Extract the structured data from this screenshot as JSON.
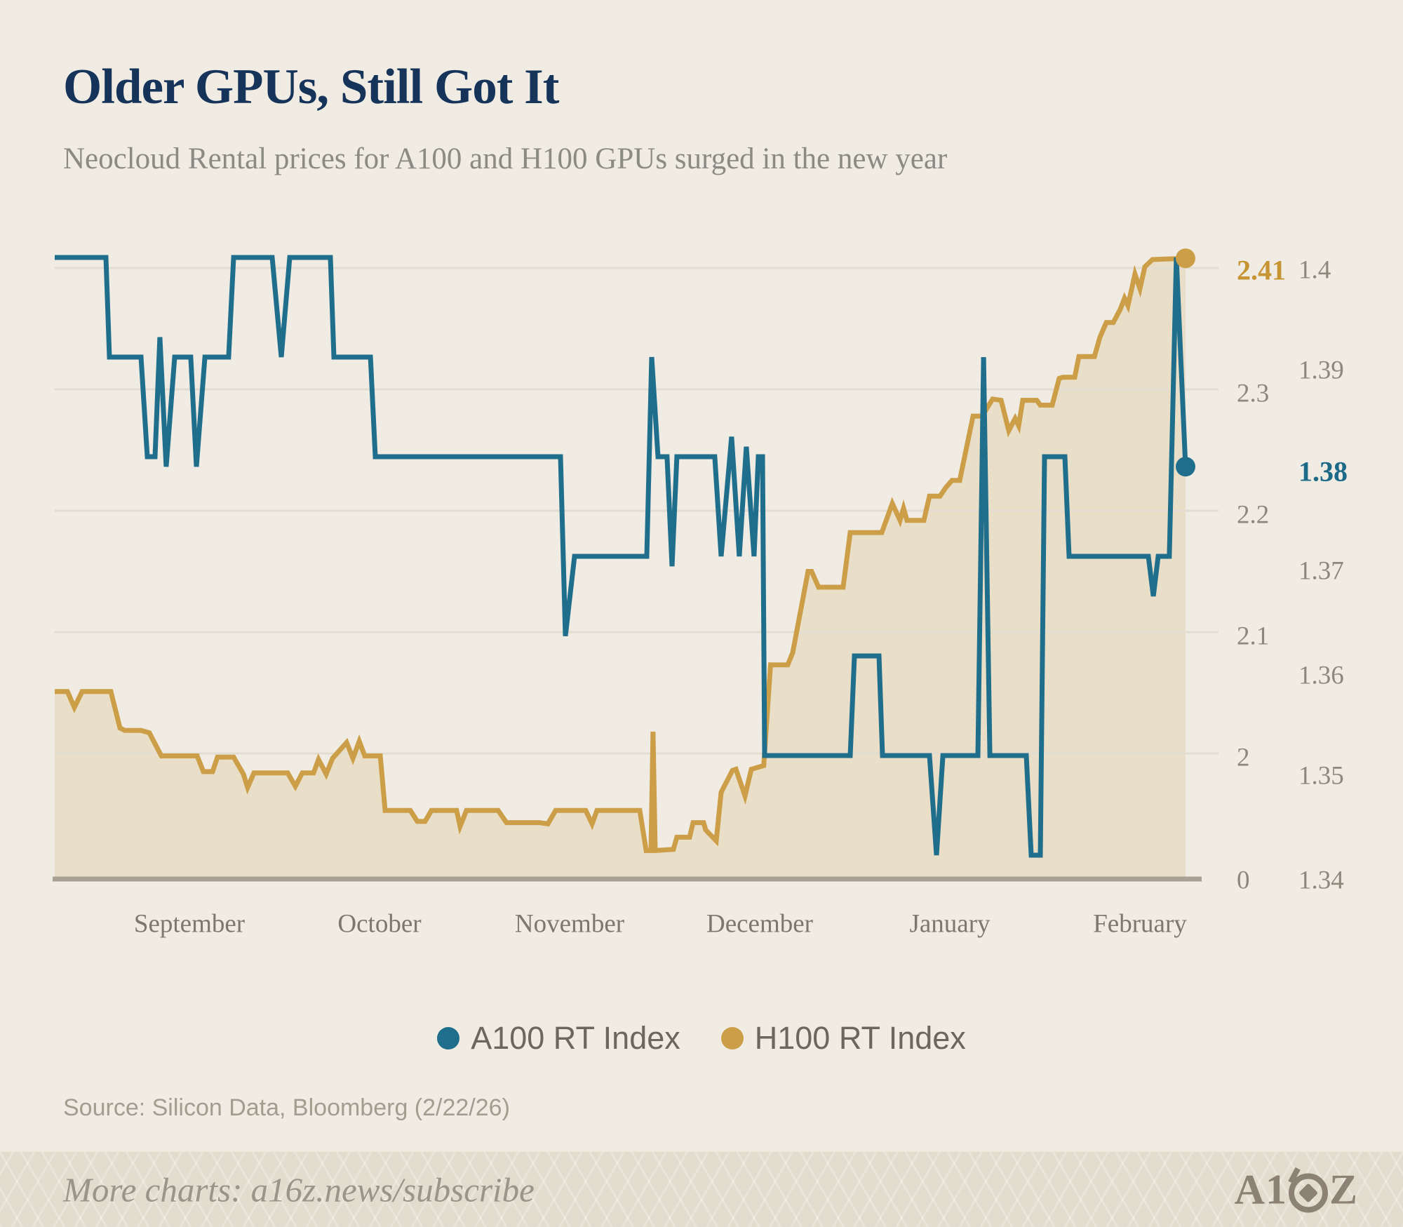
{
  "title": "Older GPUs, Still Got It",
  "subtitle": "Neocloud Rental prices for A100 and H100 GPUs surged in the new year",
  "source": "Source: Silicon Data, Bloomberg (2/22/26)",
  "footer": {
    "more_charts": "More charts: a16z.news/subscribe",
    "logo_left": "A1",
    "logo_right": "Z"
  },
  "colors": {
    "background": "#F0EBE3",
    "teal": "#1F6E8C",
    "gold": "#CC9E48",
    "gold_fill": "rgba(204,158,72,0.17)",
    "gridline": "#E2DCD1",
    "axis": "#A8A093",
    "title_navy": "#16345A",
    "end_label_gold": "#C79433",
    "end_label_teal": "#1D6A88"
  },
  "legend": {
    "items": [
      {
        "label": "A100 RT Index",
        "color": "#1F6E8C"
      },
      {
        "label": "H100 RT Index",
        "color": "#CC9E48"
      }
    ]
  },
  "axes": {
    "months": [
      "September",
      "October",
      "November",
      "December",
      "January",
      "February"
    ],
    "h100_ticks": [
      "2.41",
      "2.3",
      "2.2",
      "2.1",
      "2",
      "0"
    ],
    "a100_ticks": [
      "1.4",
      "1.39",
      "1.38",
      "1.37",
      "1.36",
      "1.35",
      "1.34"
    ]
  },
  "chart_data": {
    "type": "line",
    "title": "Older GPUs, Still Got It",
    "subtitle": "Neocloud Rental prices for A100 and H100 GPUs surged in the new year",
    "x_note": "x = fraction of time window late Aug through Feb 22; month labels September-February",
    "categories_months": [
      "September",
      "October",
      "November",
      "December",
      "January",
      "February"
    ],
    "legend_position": "bottom-center",
    "grid": "horizontal",
    "h100_axis": {
      "side": "right",
      "ticks": [
        2.41,
        2.3,
        2.2,
        2.1,
        2,
        0
      ],
      "gridlines": [
        2.4,
        2.3,
        2.2,
        2.1,
        2.0
      ]
    },
    "a100_axis": {
      "side": "right",
      "ticks": [
        1.4,
        1.39,
        1.38,
        1.37,
        1.36,
        1.35,
        1.34
      ]
    },
    "series": [
      {
        "name": "A100 RT Index",
        "axis": "a100",
        "color": "#1F6E8C",
        "end_value": 1.38,
        "end_dot": true,
        "area_fill": false,
        "points": [
          [
            0.0,
            1.4
          ],
          [
            0.0453,
            1.4
          ],
          [
            0.0484,
            1.39
          ],
          [
            0.0763,
            1.39
          ],
          [
            0.0819,
            1.38
          ],
          [
            0.0887,
            1.38
          ],
          [
            0.093,
            1.392
          ],
          [
            0.0986,
            1.379
          ],
          [
            0.1061,
            1.39
          ],
          [
            0.1203,
            1.39
          ],
          [
            0.1253,
            1.379
          ],
          [
            0.1328,
            1.39
          ],
          [
            0.1538,
            1.39
          ],
          [
            0.1582,
            1.4
          ],
          [
            0.1923,
            1.4
          ],
          [
            0.2004,
            1.39
          ],
          [
            0.2078,
            1.4
          ],
          [
            0.2438,
            1.4
          ],
          [
            0.2469,
            1.39
          ],
          [
            0.2792,
            1.39
          ],
          [
            0.2835,
            1.38
          ],
          [
            0.4473,
            1.38
          ],
          [
            0.4516,
            1.362
          ],
          [
            0.4597,
            1.37
          ],
          [
            0.5236,
            1.37
          ],
          [
            0.5279,
            1.39
          ],
          [
            0.5335,
            1.38
          ],
          [
            0.5415,
            1.38
          ],
          [
            0.5459,
            1.369
          ],
          [
            0.5502,
            1.38
          ],
          [
            0.5837,
            1.38
          ],
          [
            0.5893,
            1.37
          ],
          [
            0.5986,
            1.382
          ],
          [
            0.6054,
            1.37
          ],
          [
            0.6116,
            1.381
          ],
          [
            0.6184,
            1.37
          ],
          [
            0.6222,
            1.38
          ],
          [
            0.6259,
            1.38
          ],
          [
            0.6278,
            1.35
          ],
          [
            0.7035,
            1.35
          ],
          [
            0.7072,
            1.36
          ],
          [
            0.7289,
            1.36
          ],
          [
            0.732,
            1.35
          ],
          [
            0.7736,
            1.35
          ],
          [
            0.7798,
            1.34
          ],
          [
            0.7854,
            1.35
          ],
          [
            0.8164,
            1.35
          ],
          [
            0.8214,
            1.39
          ],
          [
            0.827,
            1.35
          ],
          [
            0.8592,
            1.35
          ],
          [
            0.8635,
            1.34
          ],
          [
            0.8716,
            1.34
          ],
          [
            0.8753,
            1.38
          ],
          [
            0.8933,
            1.38
          ],
          [
            0.897,
            1.37
          ],
          [
            0.9671,
            1.37
          ],
          [
            0.9715,
            1.366
          ],
          [
            0.9758,
            1.37
          ],
          [
            0.9857,
            1.37
          ],
          [
            0.9919,
            1.4
          ],
          [
            1.0,
            1.379
          ]
        ]
      },
      {
        "name": "H100 RT Index",
        "axis": "h100",
        "color": "#CC9E48",
        "end_value": 2.41,
        "end_dot": true,
        "area_fill": true,
        "points": [
          [
            0.0,
            2.051
          ],
          [
            0.0112,
            2.051
          ],
          [
            0.0174,
            2.038
          ],
          [
            0.0242,
            2.051
          ],
          [
            0.0496,
            2.051
          ],
          [
            0.0577,
            2.021
          ],
          [
            0.062,
            2.019
          ],
          [
            0.0763,
            2.019
          ],
          [
            0.0837,
            2.017
          ],
          [
            0.0943,
            1.998
          ],
          [
            0.1259,
            1.998
          ],
          [
            0.1315,
            1.985
          ],
          [
            0.1396,
            1.985
          ],
          [
            0.1439,
            1.997
          ],
          [
            0.1582,
            1.997
          ],
          [
            0.1669,
            1.983
          ],
          [
            0.1706,
            1.972
          ],
          [
            0.1762,
            1.984
          ],
          [
            0.206,
            1.984
          ],
          [
            0.2128,
            1.973
          ],
          [
            0.219,
            1.984
          ],
          [
            0.2289,
            1.984
          ],
          [
            0.2333,
            1.995
          ],
          [
            0.2401,
            1.983
          ],
          [
            0.2457,
            1.996
          ],
          [
            0.2581,
            2.009
          ],
          [
            0.2637,
            1.996
          ],
          [
            0.2693,
            2.01
          ],
          [
            0.2742,
            1.998
          ],
          [
            0.2879,
            1.998
          ],
          [
            0.2922,
            1.953
          ],
          [
            0.3145,
            1.953
          ],
          [
            0.3207,
            1.944
          ],
          [
            0.3275,
            1.944
          ],
          [
            0.3331,
            1.953
          ],
          [
            0.3554,
            1.953
          ],
          [
            0.3585,
            1.94
          ],
          [
            0.3641,
            1.953
          ],
          [
            0.3921,
            1.953
          ],
          [
            0.3995,
            1.943
          ],
          [
            0.4287,
            1.943
          ],
          [
            0.4361,
            1.942
          ],
          [
            0.4429,
            1.953
          ],
          [
            0.4696,
            1.953
          ],
          [
            0.4752,
            1.942
          ],
          [
            0.4795,
            1.953
          ],
          [
            0.5174,
            1.953
          ],
          [
            0.523,
            1.92
          ],
          [
            0.5273,
            1.92
          ],
          [
            0.5291,
            2.018
          ],
          [
            0.531,
            1.92
          ],
          [
            0.5471,
            1.921
          ],
          [
            0.5502,
            1.931
          ],
          [
            0.5614,
            1.931
          ],
          [
            0.5645,
            1.943
          ],
          [
            0.5738,
            1.943
          ],
          [
            0.5757,
            1.937
          ],
          [
            0.585,
            1.928
          ],
          [
            0.5893,
            1.968
          ],
          [
            0.5993,
            1.986
          ],
          [
            0.6024,
            1.987
          ],
          [
            0.6104,
            1.965
          ],
          [
            0.616,
            1.987
          ],
          [
            0.627,
            1.99
          ],
          [
            0.633,
            2.073
          ],
          [
            0.6482,
            2.073
          ],
          [
            0.6526,
            2.083
          ],
          [
            0.6662,
            2.15
          ],
          [
            0.6693,
            2.15
          ],
          [
            0.6755,
            2.137
          ],
          [
            0.6972,
            2.137
          ],
          [
            0.7035,
            2.182
          ],
          [
            0.7314,
            2.182
          ],
          [
            0.7407,
            2.206
          ],
          [
            0.7475,
            2.192
          ],
          [
            0.7506,
            2.202
          ],
          [
            0.7537,
            2.192
          ],
          [
            0.7686,
            2.192
          ],
          [
            0.7736,
            2.212
          ],
          [
            0.7829,
            2.212
          ],
          [
            0.7879,
            2.219
          ],
          [
            0.7935,
            2.225
          ],
          [
            0.8003,
            2.225
          ],
          [
            0.8121,
            2.278
          ],
          [
            0.8201,
            2.278
          ],
          [
            0.8294,
            2.292
          ],
          [
            0.8369,
            2.291
          ],
          [
            0.8437,
            2.266
          ],
          [
            0.8493,
            2.276
          ],
          [
            0.8524,
            2.27
          ],
          [
            0.8561,
            2.291
          ],
          [
            0.8685,
            2.291
          ],
          [
            0.8716,
            2.287
          ],
          [
            0.8821,
            2.287
          ],
          [
            0.8883,
            2.309
          ],
          [
            0.8914,
            2.31
          ],
          [
            0.902,
            2.31
          ],
          [
            0.9057,
            2.327
          ],
          [
            0.9194,
            2.327
          ],
          [
            0.9243,
            2.343
          ],
          [
            0.9299,
            2.355
          ],
          [
            0.9361,
            2.355
          ],
          [
            0.9423,
            2.366
          ],
          [
            0.946,
            2.375
          ],
          [
            0.9491,
            2.369
          ],
          [
            0.9553,
            2.395
          ],
          [
            0.9597,
            2.383
          ],
          [
            0.964,
            2.401
          ],
          [
            0.9708,
            2.407
          ],
          [
            1.0,
            2.408
          ]
        ]
      }
    ]
  }
}
